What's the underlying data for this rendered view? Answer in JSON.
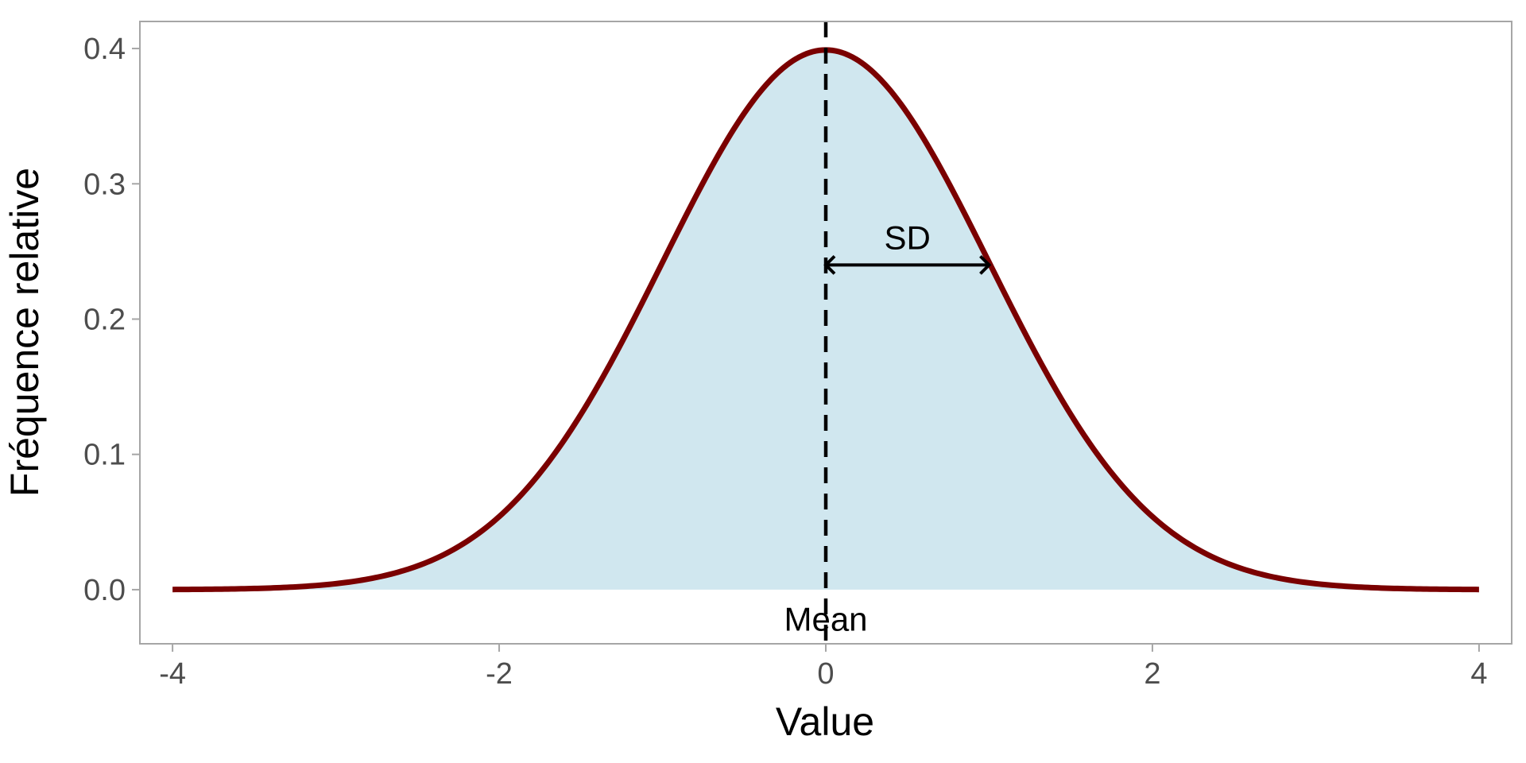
{
  "chart_data": {
    "type": "area",
    "title": "",
    "xlabel": "Value",
    "ylabel": "Fréquence relative",
    "xlim": [
      -4.2,
      4.2
    ],
    "ylim": [
      -0.04,
      0.42
    ],
    "x_ticks": [
      -4,
      -2,
      0,
      2,
      4
    ],
    "x_tick_labels": [
      "-4",
      "-2",
      "0",
      "2",
      "4"
    ],
    "y_ticks": [
      0.0,
      0.1,
      0.2,
      0.3,
      0.4
    ],
    "y_tick_labels": [
      "0.0",
      "0.1",
      "0.2",
      "0.3",
      "0.4"
    ],
    "grid": false,
    "series": [
      {
        "distribution": "normal",
        "mean": 0,
        "sd": 1,
        "x": [
          -4,
          -3.5,
          -3,
          -2.5,
          -2,
          -1.5,
          -1,
          -0.5,
          0,
          0.5,
          1,
          1.5,
          2,
          2.5,
          3,
          3.5,
          4
        ],
        "values": [
          0.0001,
          0.0009,
          0.0044,
          0.0175,
          0.054,
          0.1295,
          0.242,
          0.3521,
          0.3989,
          0.3521,
          0.242,
          0.1295,
          0.054,
          0.0175,
          0.0044,
          0.0009,
          0.0001
        ],
        "line_color": "#7a0000",
        "fill_color": "#d0e7ef"
      }
    ],
    "annotations": {
      "mean_line": {
        "x": 0,
        "label": "Mean",
        "label_y": -0.022
      },
      "sd_arrow": {
        "x_start": 0,
        "x_end": 1,
        "y": 0.24,
        "label": "SD",
        "label_x": 0.5,
        "label_y": 0.26
      }
    },
    "colors": {
      "axis": "#a6a6a6",
      "tick_text": "#4d4d4d",
      "line": "#7a0000",
      "fill": "#d0e7ef",
      "annotation": "#000000"
    }
  }
}
